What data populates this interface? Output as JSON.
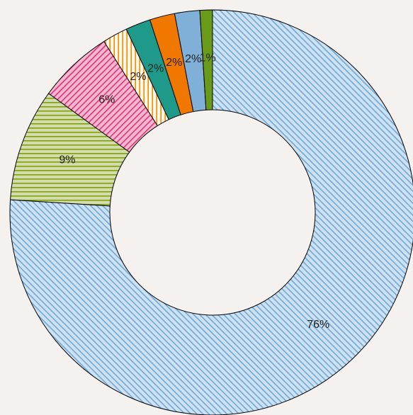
{
  "chart_data": {
    "type": "donut",
    "values": [
      76,
      9,
      6,
      2,
      2,
      2,
      2,
      1
    ],
    "value_labels": [
      "76%",
      "9%",
      "6%",
      "2%",
      "2%",
      "2%",
      "2%",
      "1%"
    ],
    "colors": [
      "#6fa8d6",
      "#7f9f10",
      "#e0337a",
      "#f08c00",
      "#1f9a8a",
      "#f07800",
      "#80b0d8",
      "#6a9a1a"
    ],
    "patterns": [
      "diagonal-down",
      "horizontal",
      "diagonal-up",
      "vertical",
      "solid",
      "solid",
      "solid",
      "solid"
    ]
  }
}
